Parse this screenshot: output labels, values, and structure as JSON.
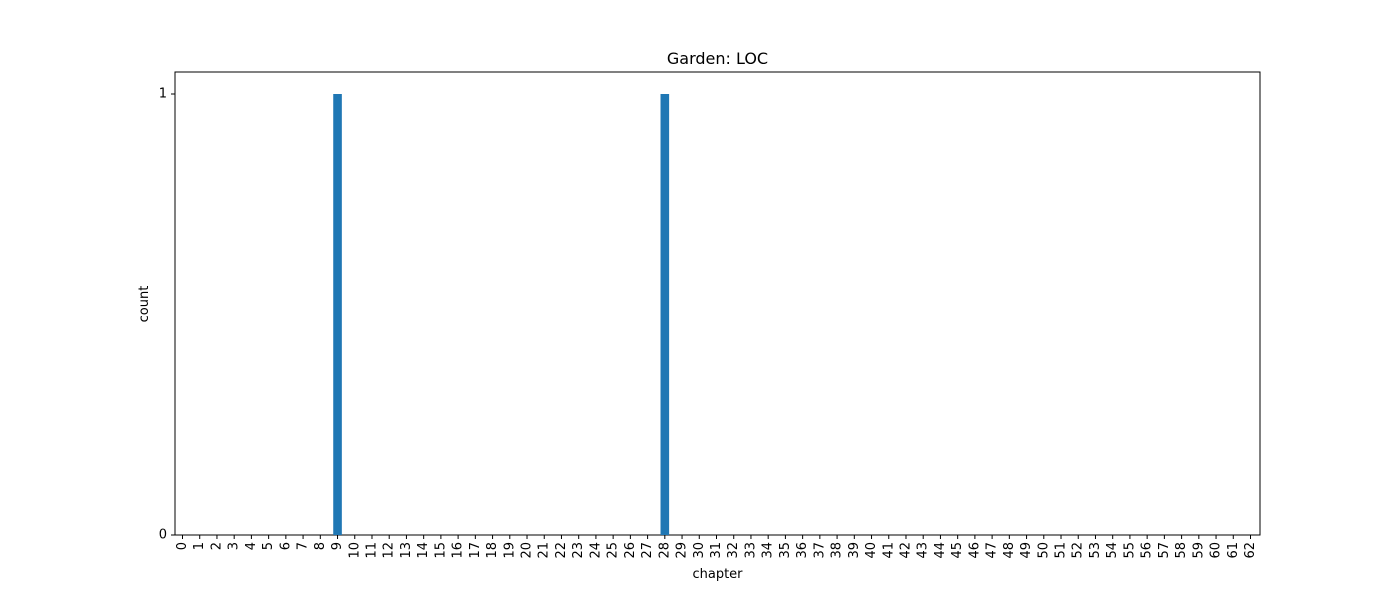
{
  "chart_data": {
    "type": "bar",
    "title": "Garden: LOC",
    "xlabel": "chapter",
    "ylabel": "count",
    "categories": [
      "0",
      "1",
      "2",
      "3",
      "4",
      "5",
      "6",
      "7",
      "8",
      "9",
      "10",
      "11",
      "12",
      "13",
      "14",
      "15",
      "16",
      "17",
      "18",
      "19",
      "20",
      "21",
      "22",
      "23",
      "24",
      "25",
      "26",
      "27",
      "28",
      "29",
      "30",
      "31",
      "32",
      "33",
      "34",
      "35",
      "36",
      "37",
      "38",
      "39",
      "40",
      "41",
      "42",
      "43",
      "44",
      "45",
      "46",
      "47",
      "48",
      "49",
      "50",
      "51",
      "52",
      "53",
      "54",
      "55",
      "56",
      "57",
      "58",
      "59",
      "60",
      "61",
      "62"
    ],
    "values": [
      0,
      0,
      0,
      0,
      0,
      0,
      0,
      0,
      0,
      1,
      0,
      0,
      0,
      0,
      0,
      0,
      0,
      0,
      0,
      0,
      0,
      0,
      0,
      0,
      0,
      0,
      0,
      0,
      1,
      0,
      0,
      0,
      0,
      0,
      0,
      0,
      0,
      0,
      0,
      0,
      0,
      0,
      0,
      0,
      0,
      0,
      0,
      0,
      0,
      0,
      0,
      0,
      0,
      0,
      0,
      0,
      0,
      0,
      0,
      0,
      0,
      0,
      0
    ],
    "yticks": [
      "0",
      "1"
    ],
    "ylim": [
      0,
      1.05
    ],
    "grid": false,
    "legend": false,
    "bar_color": "#1f77b4"
  }
}
